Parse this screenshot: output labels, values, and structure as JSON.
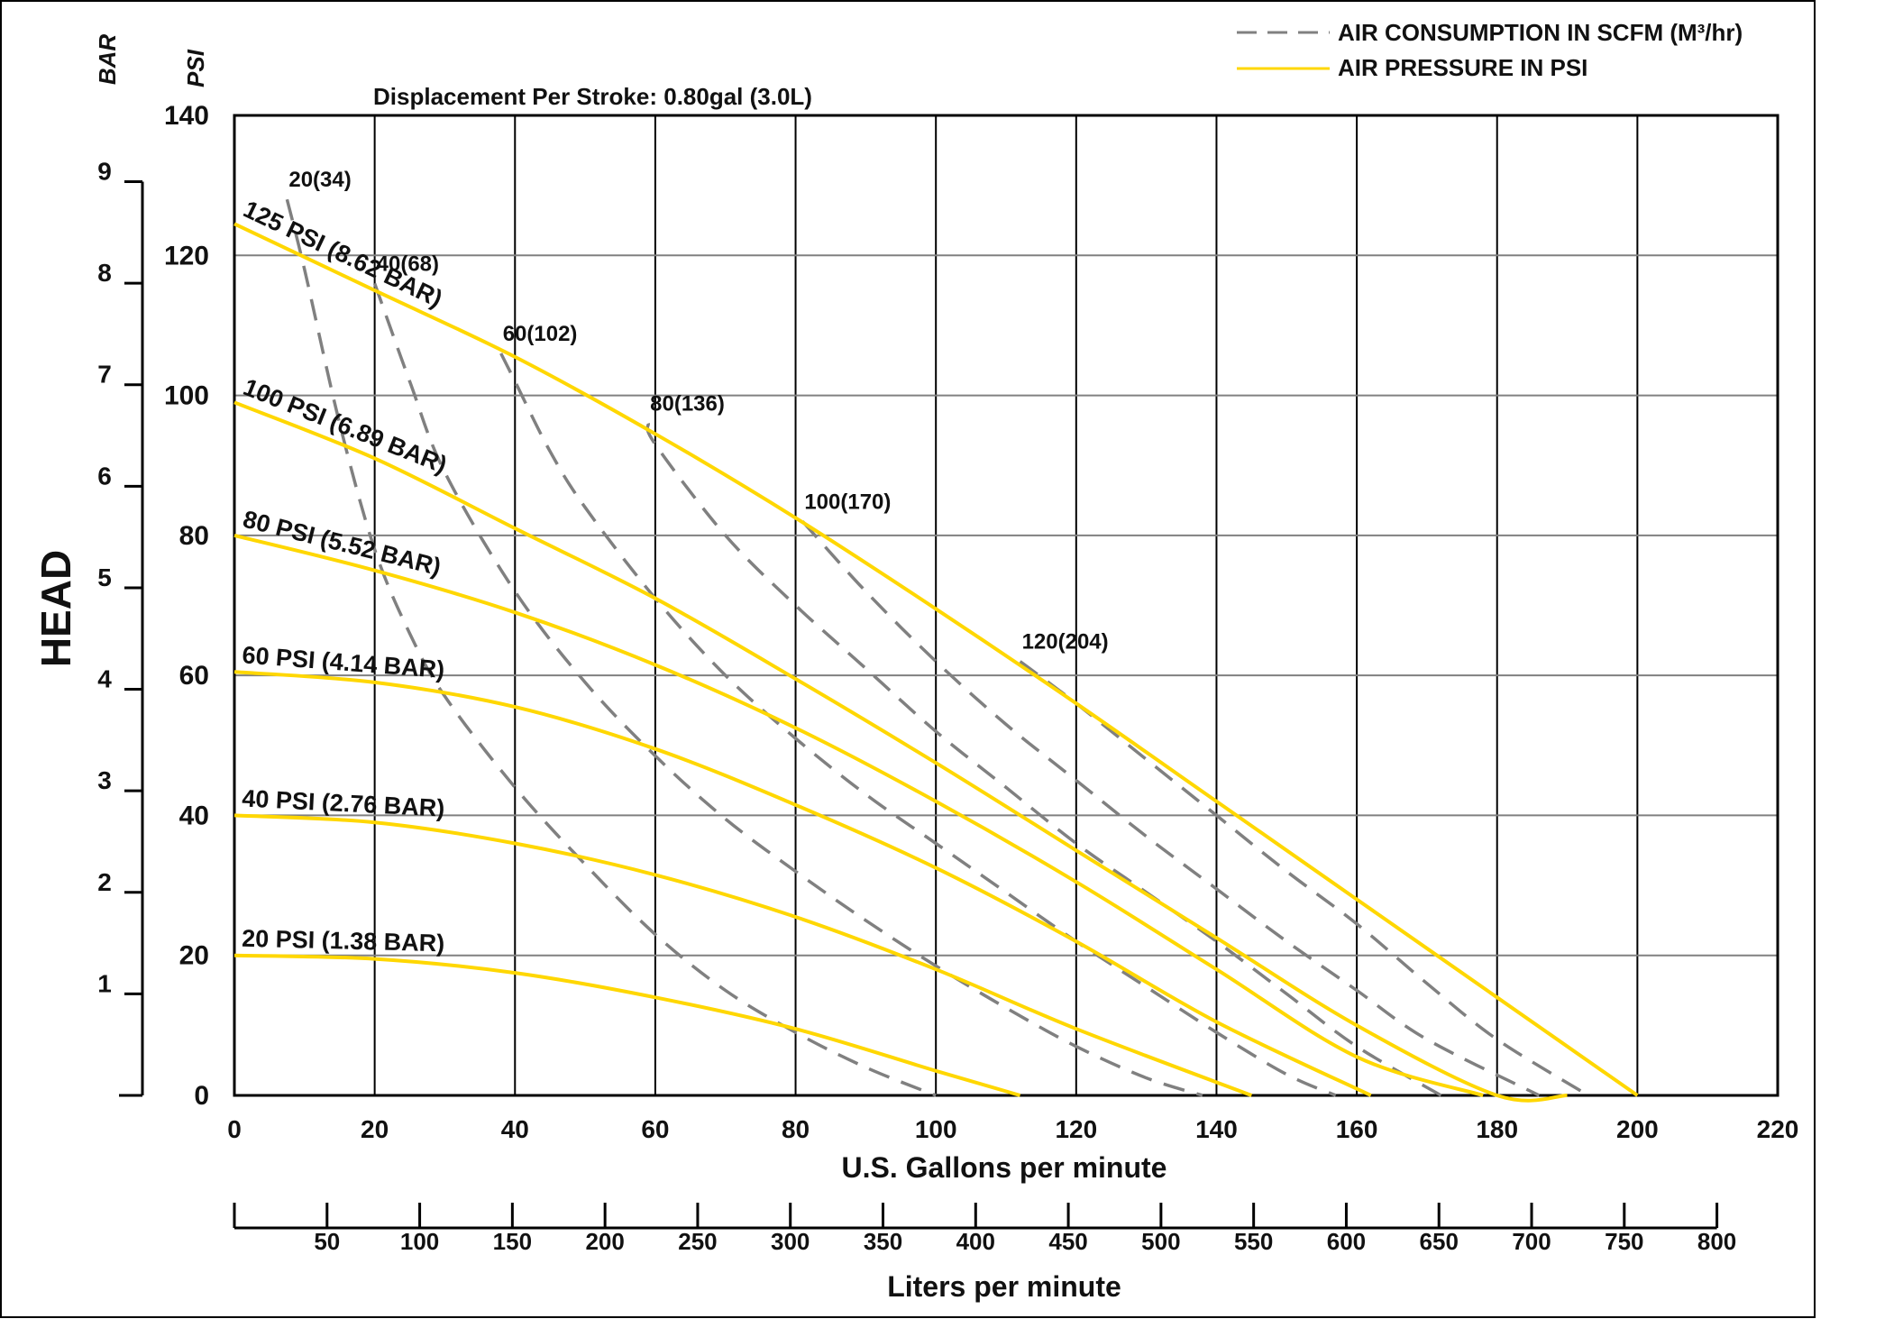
{
  "chart_data": {
    "type": "line",
    "subtitle": "Displacement Per Stroke:  0.80gal (3.0L)",
    "ylabel": "HEAD",
    "ylabel_units": {
      "psi": "PSI",
      "bar": "BAR"
    },
    "xlabel": "U.S.  Gallons per minute",
    "xlabel2": "Liters per minute",
    "xlim": [
      0,
      220
    ],
    "ylim": [
      0,
      140
    ],
    "x_ticks": [
      "0",
      "20",
      "40",
      "60",
      "80",
      "100",
      "120",
      "140",
      "160",
      "180",
      "200",
      "220"
    ],
    "y_ticks_psi": [
      "0",
      "20",
      "40",
      "60",
      "80",
      "100",
      "120",
      "140"
    ],
    "y_ticks_bar": [
      "1",
      "2",
      "3",
      "4",
      "5",
      "6",
      "7",
      "8",
      "9"
    ],
    "x2_ticks": [
      "50",
      "100",
      "150",
      "200",
      "250",
      "300",
      "350",
      "400",
      "450",
      "500",
      "550",
      "600",
      "650",
      "700",
      "750",
      "800"
    ],
    "grid": true,
    "legend_position": "top-right",
    "legend": [
      {
        "label": "AIR CONSUMPTION IN SCFM (M³/hr)",
        "style": "dashed",
        "color": "#808080"
      },
      {
        "label": "AIR PRESSURE IN PSI",
        "style": "solid",
        "color": "#FFD700"
      }
    ],
    "colors": {
      "pressure": "#FFD700",
      "consumption": "#808080",
      "grid": "#808080"
    },
    "series": [
      {
        "name": "125 PSI (8.62 BAR)",
        "kind": "pressure",
        "x": [
          0,
          20,
          40,
          60,
          80,
          100,
          120,
          140,
          160,
          180,
          200
        ],
        "y": [
          124.5,
          115,
          105.5,
          94.5,
          82.5,
          69.5,
          56,
          42,
          28,
          14,
          0
        ]
      },
      {
        "name": "100 PSI (6.89 BAR)",
        "kind": "pressure",
        "x": [
          0,
          20,
          40,
          60,
          80,
          100,
          120,
          140,
          160,
          180,
          190
        ],
        "y": [
          99,
          91,
          81,
          71,
          59.5,
          47.5,
          35,
          22.5,
          10,
          -1,
          0
        ]
      },
      {
        "name": "80 PSI (5.52 BAR)",
        "kind": "pressure",
        "x": [
          0,
          20,
          40,
          60,
          80,
          100,
          120,
          140,
          160,
          178
        ],
        "y": [
          80,
          75,
          69,
          61.5,
          52.5,
          42,
          30.5,
          18,
          5.5,
          0
        ]
      },
      {
        "name": "60 PSI (4.14 BAR)",
        "kind": "pressure",
        "x": [
          0,
          20,
          40,
          60,
          80,
          100,
          120,
          140,
          162
        ],
        "y": [
          60.5,
          59,
          55.5,
          49.5,
          41.5,
          32.5,
          22,
          10.5,
          0
        ]
      },
      {
        "name": "40 PSI (2.76 BAR)",
        "kind": "pressure",
        "x": [
          0,
          20,
          40,
          60,
          80,
          100,
          120,
          145
        ],
        "y": [
          40,
          39,
          36,
          31.5,
          25.5,
          18,
          9.5,
          0
        ]
      },
      {
        "name": "20 PSI (1.38 BAR)",
        "kind": "pressure",
        "x": [
          0,
          20,
          40,
          60,
          80,
          100,
          112
        ],
        "y": [
          20,
          19.5,
          17.5,
          14,
          9.5,
          3.5,
          0
        ]
      },
      {
        "name": "20(34)",
        "kind": "consumption",
        "x": [
          7.5,
          10,
          15,
          20,
          25,
          30,
          40,
          50,
          60,
          70,
          80,
          90,
          100
        ],
        "y": [
          128,
          118,
          96,
          78,
          66,
          57,
          44,
          33,
          23,
          15,
          9,
          4,
          0
        ]
      },
      {
        "name": "40(68)",
        "kind": "consumption",
        "x": [
          20,
          25,
          30,
          40,
          50,
          60,
          70,
          80,
          90,
          100,
          110,
          120,
          130,
          138
        ],
        "y": [
          116,
          102,
          89,
          72,
          59,
          48.5,
          39.5,
          32,
          25,
          18.5,
          12.5,
          7,
          2.5,
          0
        ]
      },
      {
        "name": "60(102)",
        "kind": "consumption",
        "x": [
          38,
          40,
          45,
          50,
          60,
          70,
          80,
          90,
          100,
          110,
          120,
          130,
          140,
          150,
          157
        ],
        "y": [
          106,
          102,
          92,
          84,
          71,
          60,
          51,
          43,
          36,
          29,
          22,
          15.5,
          9,
          3,
          0
        ]
      },
      {
        "name": "80(136)",
        "kind": "consumption",
        "x": [
          59,
          60,
          70,
          80,
          90,
          100,
          110,
          120,
          130,
          140,
          150,
          160,
          172
        ],
        "y": [
          96,
          93,
          80,
          70,
          61,
          52,
          44,
          36,
          29,
          22,
          14.5,
          7,
          0
        ]
      },
      {
        "name": "100(170)",
        "kind": "consumption",
        "x": [
          81,
          90,
          100,
          110,
          120,
          130,
          140,
          150,
          160,
          170,
          186
        ],
        "y": [
          82,
          72,
          62,
          53,
          45,
          37,
          29.5,
          22,
          15,
          8,
          0
        ]
      },
      {
        "name": "120(204)",
        "kind": "consumption",
        "x": [
          112,
          120,
          130,
          140,
          150,
          160,
          170,
          180,
          193
        ],
        "y": [
          62,
          56,
          48,
          40,
          32,
          24.5,
          16,
          8,
          0
        ]
      }
    ]
  }
}
